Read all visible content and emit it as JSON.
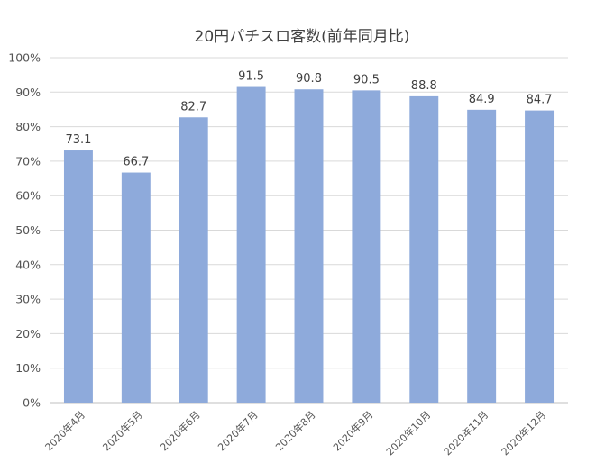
{
  "chart_data": {
    "type": "bar",
    "title": "20円パチスロ客数(前年同月比)",
    "categories": [
      "2020年4月",
      "2020年5月",
      "2020年6月",
      "2020年7月",
      "2020年8月",
      "2020年9月",
      "2020年10月",
      "2020年11月",
      "2020年12月"
    ],
    "values": [
      73.1,
      66.7,
      82.7,
      91.5,
      90.8,
      90.5,
      88.8,
      84.9,
      84.7
    ],
    "data_labels": [
      "73.1",
      "66.7",
      "82.7",
      "91.5",
      "90.8",
      "90.5",
      "88.8",
      "84.9",
      "84.7"
    ],
    "y_ticks": [
      "0%",
      "10%",
      "20%",
      "30%",
      "40%",
      "50%",
      "60%",
      "70%",
      "80%",
      "90%",
      "100%"
    ],
    "ylim": [
      0,
      100
    ],
    "xlabel": "",
    "ylabel": "",
    "grid": true,
    "legend": "none",
    "bar_color": "#8eaadb",
    "grid_color": "#d9d9d9",
    "text_color": "#404040"
  }
}
